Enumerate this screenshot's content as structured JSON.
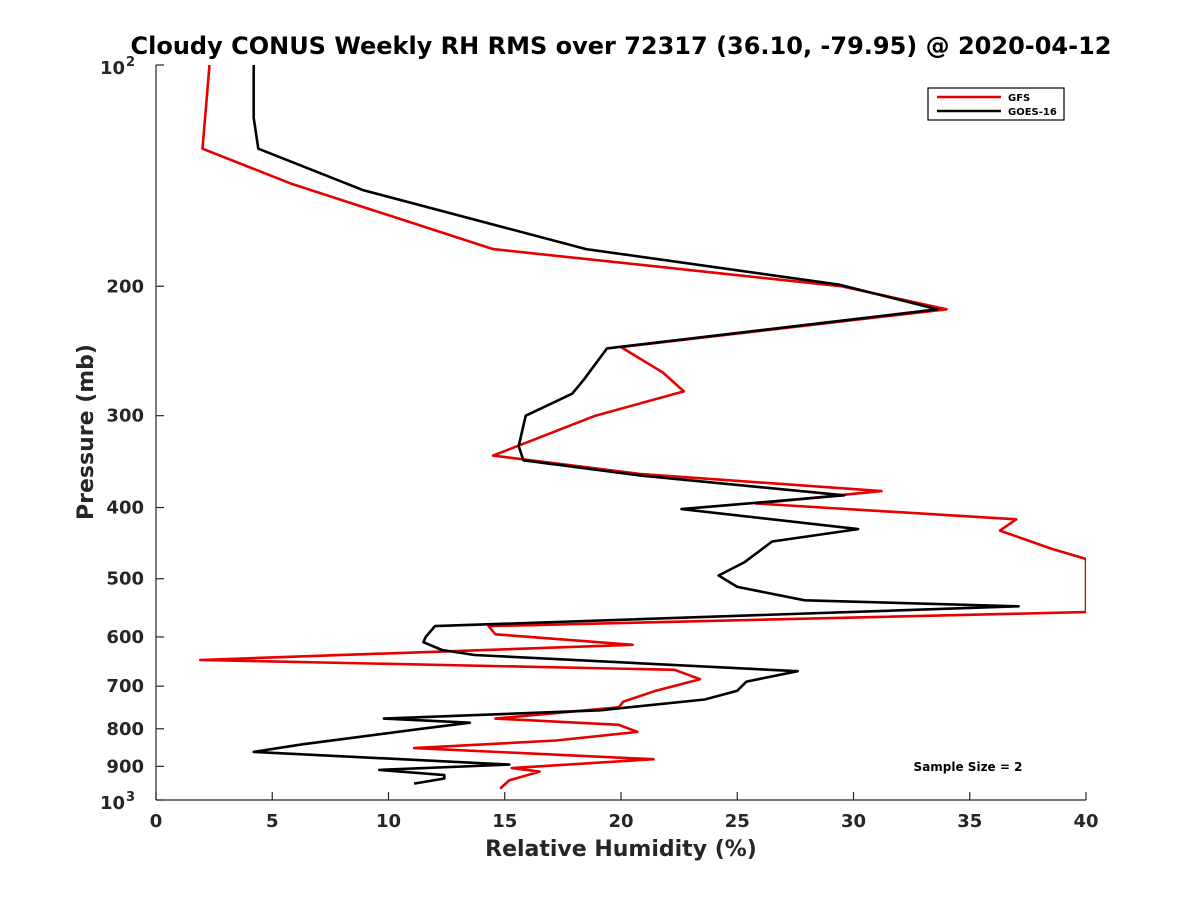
{
  "chart_data": {
    "type": "line",
    "title": "Cloudy CONUS Weekly RH RMS over 72317 (36.10, -79.95) @ 2020-04-12",
    "xlabel": "Relative Humidity (%)",
    "ylabel": "Pressure (mb)",
    "xlim": [
      0,
      40
    ],
    "ylim": [
      100,
      1000
    ],
    "y_scale": "log",
    "y_reversed": true,
    "x_ticks": [
      "0",
      "5",
      "10",
      "15",
      "20",
      "25",
      "30",
      "35",
      "40"
    ],
    "y_ticks": [
      {
        "value": 100,
        "base": "10",
        "exp": "2"
      },
      {
        "value": 200,
        "label": "200"
      },
      {
        "value": 300,
        "label": "300"
      },
      {
        "value": 400,
        "label": "400"
      },
      {
        "value": 500,
        "label": "500"
      },
      {
        "value": 600,
        "label": "600"
      },
      {
        "value": 700,
        "label": "700"
      },
      {
        "value": 800,
        "label": "800"
      },
      {
        "value": 900,
        "label": "900"
      },
      {
        "value": 1000,
        "base": "10",
        "exp": "3"
      }
    ],
    "legend_position": "top-right",
    "grid": false,
    "annotation": "Sample Size = 2",
    "series": [
      {
        "name": "GFS",
        "color": "#e60000",
        "points": [
          [
            2.3,
            100
          ],
          [
            2.0,
            130
          ],
          [
            5.8,
            145
          ],
          [
            14.5,
            178
          ],
          [
            29.5,
            200
          ],
          [
            34.0,
            215
          ],
          [
            20.0,
            242
          ],
          [
            21.8,
            262
          ],
          [
            22.7,
            278
          ],
          [
            18.9,
            300
          ],
          [
            14.5,
            340
          ],
          [
            20.8,
            360
          ],
          [
            31.2,
            380
          ],
          [
            25.8,
            395
          ],
          [
            37.0,
            415
          ],
          [
            36.3,
            430
          ],
          [
            38.5,
            455
          ],
          [
            40.0,
            470
          ],
          [
            40.0,
            555
          ],
          [
            14.3,
            580
          ],
          [
            14.6,
            595
          ],
          [
            20.5,
            615
          ],
          [
            1.9,
            645
          ],
          [
            22.3,
            665
          ],
          [
            23.4,
            685
          ],
          [
            21.5,
            710
          ],
          [
            20.1,
            735
          ],
          [
            19.9,
            748
          ],
          [
            14.6,
            775
          ],
          [
            19.9,
            790
          ],
          [
            20.7,
            808
          ],
          [
            17.2,
            830
          ],
          [
            11.1,
            850
          ],
          [
            21.4,
            880
          ],
          [
            15.3,
            905
          ],
          [
            16.5,
            915
          ],
          [
            15.2,
            940
          ],
          [
            14.8,
            965
          ]
        ]
      },
      {
        "name": "GOES-16",
        "color": "#000000",
        "points": [
          [
            4.2,
            100
          ],
          [
            4.2,
            118
          ],
          [
            4.4,
            130
          ],
          [
            8.9,
            148
          ],
          [
            18.5,
            178
          ],
          [
            29.4,
            199
          ],
          [
            33.6,
            215
          ],
          [
            19.4,
            243
          ],
          [
            18.4,
            268
          ],
          [
            17.9,
            280
          ],
          [
            15.9,
            300
          ],
          [
            15.6,
            330
          ],
          [
            15.8,
            345
          ],
          [
            20.9,
            362
          ],
          [
            29.6,
            385
          ],
          [
            22.6,
            402
          ],
          [
            30.2,
            428
          ],
          [
            26.5,
            445
          ],
          [
            25.3,
            475
          ],
          [
            24.2,
            495
          ],
          [
            25.0,
            513
          ],
          [
            27.9,
            535
          ],
          [
            37.1,
            545
          ],
          [
            12.0,
            580
          ],
          [
            11.6,
            600
          ],
          [
            11.5,
            610
          ],
          [
            12.3,
            625
          ],
          [
            13.7,
            635
          ],
          [
            27.6,
            668
          ],
          [
            25.4,
            690
          ],
          [
            25.0,
            710
          ],
          [
            23.6,
            730
          ],
          [
            19.1,
            755
          ],
          [
            9.8,
            775
          ],
          [
            13.5,
            785
          ],
          [
            11.4,
            800
          ],
          [
            6.3,
            840
          ],
          [
            4.2,
            860
          ],
          [
            15.2,
            895
          ],
          [
            9.6,
            910
          ],
          [
            12.4,
            925
          ],
          [
            12.4,
            935
          ],
          [
            11.1,
            950
          ]
        ]
      }
    ]
  }
}
